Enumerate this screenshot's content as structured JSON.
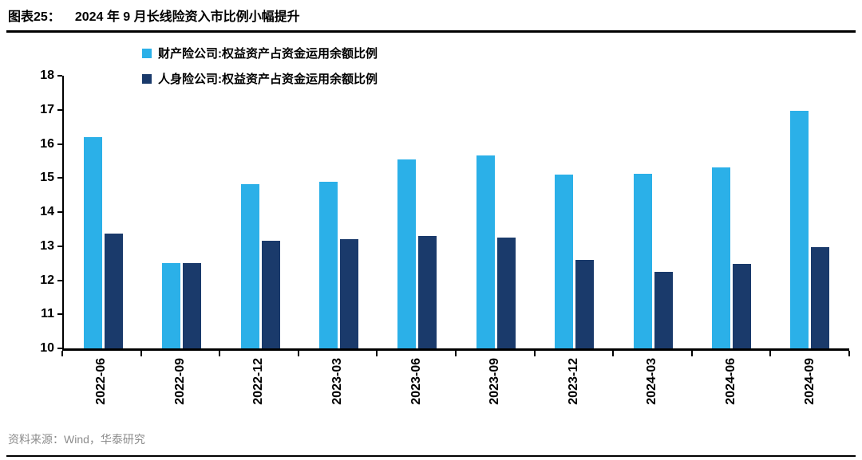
{
  "title": {
    "figure_label": "图表25：",
    "text": "2024 年 9 月长线险资入市比例小幅提升"
  },
  "footer": {
    "source": "资料来源：Wind，华泰研究"
  },
  "chart_data": {
    "type": "bar",
    "title": "2024 年 9 月长线险资入市比例小幅提升",
    "categories": [
      "2022-06",
      "2022-09",
      "2022-12",
      "2023-03",
      "2023-06",
      "2023-09",
      "2023-12",
      "2024-03",
      "2024-06",
      "2024-09"
    ],
    "series": [
      {
        "id": "property-insurance",
        "name": "财产险公司:权益资产占资金运用余额比例",
        "color": "#2BB0E8",
        "values": [
          16.2,
          12.5,
          14.83,
          14.88,
          15.55,
          15.65,
          15.1,
          15.12,
          15.3,
          16.97
        ]
      },
      {
        "id": "life-insurance",
        "name": "人身险公司:权益资产占资金运用余额比例",
        "color": "#1A3A6B",
        "values": [
          13.38,
          12.5,
          13.15,
          13.2,
          13.3,
          13.25,
          12.6,
          12.25,
          12.48,
          12.97
        ]
      }
    ],
    "ylim": [
      10,
      18
    ],
    "yticks": [
      18,
      17,
      16,
      15,
      14,
      13,
      12,
      11,
      10
    ],
    "xlabel": "",
    "ylabel": "",
    "grid": false,
    "legend_position": "top-left"
  }
}
